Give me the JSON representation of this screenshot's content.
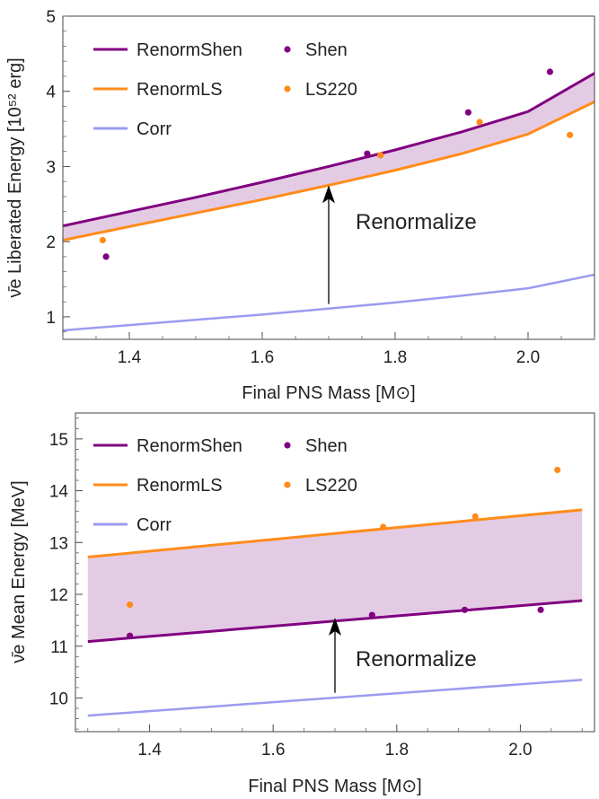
{
  "colors": {
    "renorm_shen": "#800080",
    "renorm_ls": "#ff8c1a",
    "corr": "#9b9bf0",
    "band_fill": "#e3c8e3"
  },
  "chart_data": [
    {
      "type": "line",
      "xlabel": "Final PNS Mass [M⊙]",
      "ylabel": "ν̄e Liberated Energy [10⁵² erg]",
      "xlim": [
        1.3,
        2.1
      ],
      "ylim": [
        0.7,
        5.0
      ],
      "x_ticks": [
        1.4,
        1.6,
        1.8,
        2.0
      ],
      "x_tick_labels": [
        "1.4",
        "1.6",
        "1.8",
        "2.0"
      ],
      "y_ticks": [
        1,
        2,
        3,
        4,
        5
      ],
      "y_tick_labels": [
        "1",
        "2",
        "3",
        "4",
        "5"
      ],
      "grid": false,
      "legend_position": "top-left",
      "series": [
        {
          "name": "RenormShen",
          "kind": "line",
          "x": [
            1.3,
            1.4,
            1.5,
            1.6,
            1.7,
            1.8,
            1.9,
            2.0,
            2.1
          ],
          "y": [
            2.21,
            2.4,
            2.59,
            2.79,
            3.0,
            3.22,
            3.46,
            3.73,
            4.24
          ]
        },
        {
          "name": "RenormLS",
          "kind": "line",
          "x": [
            1.3,
            1.4,
            1.5,
            1.6,
            1.7,
            1.8,
            1.9,
            2.0,
            2.1
          ],
          "y": [
            2.02,
            2.2,
            2.38,
            2.56,
            2.75,
            2.95,
            3.17,
            3.43,
            3.86
          ]
        },
        {
          "name": "Corr",
          "kind": "line",
          "x": [
            1.3,
            1.4,
            1.5,
            1.6,
            1.7,
            1.8,
            1.9,
            2.0,
            2.1
          ],
          "y": [
            0.82,
            0.89,
            0.96,
            1.03,
            1.11,
            1.19,
            1.28,
            1.38,
            1.56
          ]
        },
        {
          "name": "Shen",
          "kind": "scatter",
          "x": [
            1.365,
            1.758,
            1.91,
            2.033
          ],
          "y": [
            1.8,
            3.17,
            3.72,
            4.26
          ]
        },
        {
          "name": "LS220",
          "kind": "scatter",
          "x": [
            1.36,
            1.778,
            1.927,
            2.063
          ],
          "y": [
            2.02,
            3.15,
            3.59,
            3.42
          ]
        }
      ],
      "annotations": [
        {
          "text": "Renormalize",
          "arrow_from": [
            1.7,
            1.17
          ],
          "arrow_to": [
            1.7,
            2.75
          ]
        }
      ]
    },
    {
      "type": "line",
      "xlabel": "Final PNS Mass [M⊙]",
      "ylabel": "ν̄e Mean Energy [MeV]",
      "xlim": [
        1.28,
        2.12
      ],
      "ylim": [
        9.35,
        15.5
      ],
      "x_ticks": [
        1.4,
        1.6,
        1.8,
        2.0
      ],
      "x_tick_labels": [
        "1.4",
        "1.6",
        "1.8",
        "2.0"
      ],
      "y_ticks": [
        10,
        11,
        12,
        13,
        14,
        15
      ],
      "y_tick_labels": [
        "10",
        "11",
        "12",
        "13",
        "14",
        "15"
      ],
      "grid": false,
      "legend_position": "top-left",
      "series": [
        {
          "name": "RenormShen",
          "kind": "line",
          "x": [
            1.3,
            2.1
          ],
          "y": [
            11.09,
            11.88
          ]
        },
        {
          "name": "RenormLS",
          "kind": "line",
          "x": [
            1.3,
            2.1
          ],
          "y": [
            12.72,
            13.63
          ]
        },
        {
          "name": "Corr",
          "kind": "line",
          "x": [
            1.3,
            2.1
          ],
          "y": [
            9.66,
            10.35
          ]
        },
        {
          "name": "Shen",
          "kind": "scatter",
          "x": [
            1.368,
            1.76,
            1.91,
            2.033
          ],
          "y": [
            11.2,
            11.6,
            11.7,
            11.7
          ]
        },
        {
          "name": "LS220",
          "kind": "scatter",
          "x": [
            1.368,
            1.778,
            1.927,
            2.06
          ],
          "y": [
            11.8,
            13.3,
            13.5,
            14.4
          ]
        }
      ],
      "annotations": [
        {
          "text": "Renormalize",
          "arrow_from": [
            1.7,
            10.1
          ],
          "arrow_to": [
            1.7,
            11.55
          ]
        }
      ]
    }
  ]
}
